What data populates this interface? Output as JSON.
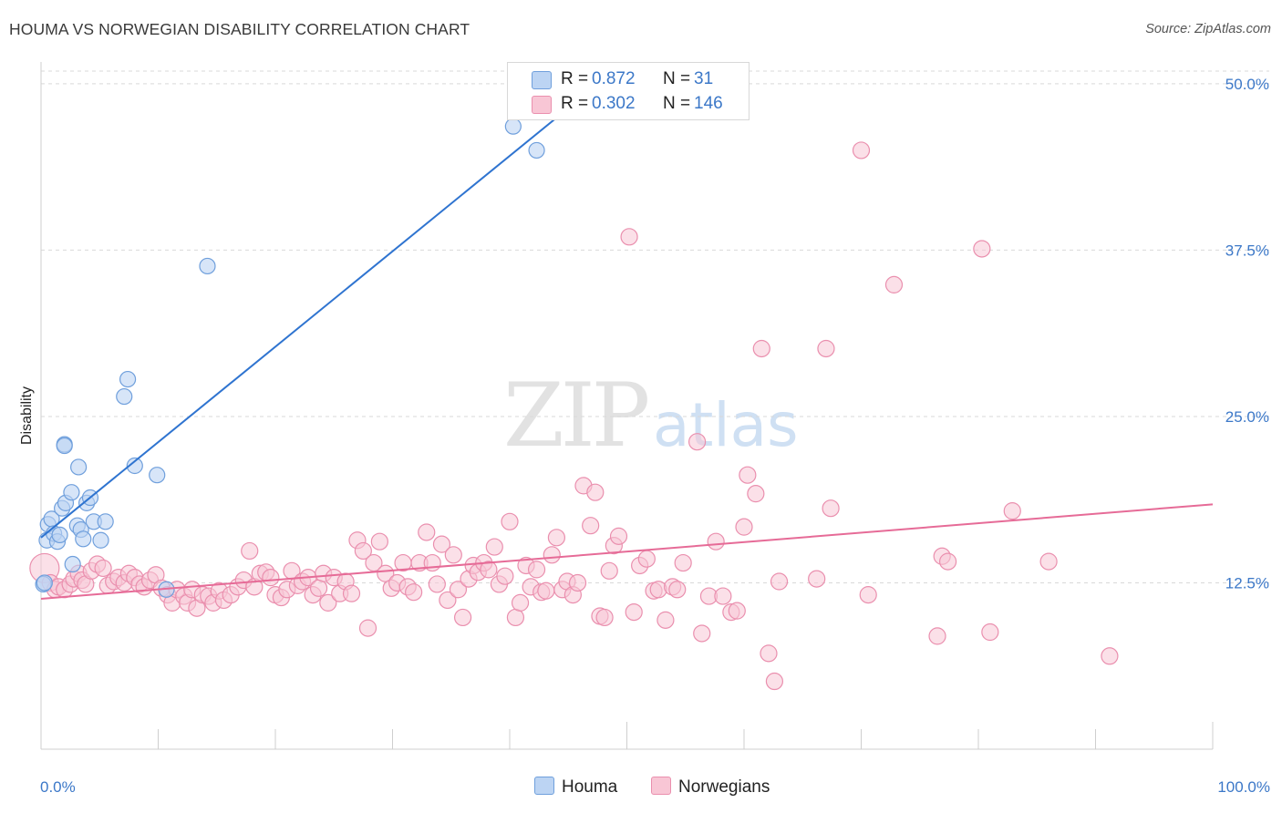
{
  "title": "HOUMA VS NORWEGIAN DISABILITY CORRELATION CHART",
  "source": "Source: ZipAtlas.com",
  "watermark": {
    "zip": "ZIP",
    "atlas": "atlas"
  },
  "legend": {
    "items": [
      {
        "r_label": "R =",
        "r_value": "0.872",
        "n_label": "N =",
        "n_value": "31",
        "color": "#a9c8f0"
      },
      {
        "r_label": "R =",
        "r_value": "0.302",
        "n_label": "N =",
        "n_value": "146",
        "color": "#f7b9cc"
      }
    ]
  },
  "bottom_legend": {
    "houma": "Houma",
    "norwegians": "Norwegians"
  },
  "colors": {
    "houma_fill": "#bcd4f3",
    "houma_stroke": "#6f9fdc",
    "houma_line": "#2f74d0",
    "norw_fill": "#f8c6d5",
    "norw_stroke": "#ea8fae",
    "norw_line": "#e66b97",
    "axis_text": "#3c78c8",
    "grid": "#d9d9d9"
  },
  "chart_data": {
    "type": "scatter",
    "xlabel": "",
    "ylabel": "Disability",
    "xlim": [
      0,
      100
    ],
    "ylim": [
      0,
      51.5
    ],
    "x_tick_labels": [
      "0.0%",
      "100.0%"
    ],
    "y_ticks": [
      12.5,
      25.0,
      37.5,
      50.0
    ],
    "y_tick_labels": [
      "12.5%",
      "25.0%",
      "37.5%",
      "50.0%"
    ],
    "grid": true,
    "legend_position": "top-center",
    "series": [
      {
        "name": "Houma",
        "trend": {
          "x": [
            0,
            47.0
          ],
          "y": [
            15.9,
            49.6
          ]
        },
        "points": [
          [
            0.2,
            12.4
          ],
          [
            0.5,
            15.7
          ],
          [
            0.6,
            16.9
          ],
          [
            0.9,
            17.3
          ],
          [
            1.1,
            16.2
          ],
          [
            1.4,
            15.6
          ],
          [
            1.8,
            18.1
          ],
          [
            2.0,
            22.9
          ],
          [
            2.1,
            18.5
          ],
          [
            2.6,
            19.3
          ],
          [
            2.7,
            13.9
          ],
          [
            3.1,
            16.8
          ],
          [
            3.2,
            21.2
          ],
          [
            3.4,
            16.5
          ],
          [
            3.6,
            15.8
          ],
          [
            3.9,
            18.5
          ],
          [
            4.2,
            18.9
          ],
          [
            4.5,
            17.1
          ],
          [
            5.1,
            15.7
          ],
          [
            5.5,
            17.1
          ],
          [
            7.1,
            26.5
          ],
          [
            7.4,
            27.8
          ],
          [
            8.0,
            21.3
          ],
          [
            9.9,
            20.6
          ],
          [
            10.7,
            12.0
          ],
          [
            14.2,
            36.3
          ],
          [
            40.3,
            46.8
          ],
          [
            42.3,
            45.0
          ],
          [
            2.0,
            22.8
          ],
          [
            0.3,
            12.5
          ],
          [
            1.6,
            16.1
          ]
        ]
      },
      {
        "name": "Norwegians",
        "trend": {
          "x": [
            0,
            100
          ],
          "y": [
            11.3,
            18.4
          ]
        },
        "points": [
          [
            0.3,
            13.6
          ],
          [
            0.8,
            12.5
          ],
          [
            1.2,
            12.0
          ],
          [
            1.5,
            12.2
          ],
          [
            2.0,
            12.0
          ],
          [
            2.5,
            12.4
          ],
          [
            2.8,
            12.8
          ],
          [
            3.2,
            13.2
          ],
          [
            3.5,
            12.7
          ],
          [
            3.8,
            12.4
          ],
          [
            4.3,
            13.4
          ],
          [
            4.8,
            13.9
          ],
          [
            5.3,
            13.6
          ],
          [
            5.7,
            12.3
          ],
          [
            6.2,
            12.6
          ],
          [
            6.6,
            12.9
          ],
          [
            7.1,
            12.5
          ],
          [
            7.5,
            13.2
          ],
          [
            8.0,
            12.9
          ],
          [
            8.4,
            12.4
          ],
          [
            8.8,
            12.2
          ],
          [
            9.3,
            12.7
          ],
          [
            9.8,
            13.1
          ],
          [
            10.3,
            12.1
          ],
          [
            10.8,
            11.6
          ],
          [
            11.2,
            11.0
          ],
          [
            11.6,
            12.0
          ],
          [
            12.2,
            11.5
          ],
          [
            12.5,
            11.0
          ],
          [
            12.9,
            12.0
          ],
          [
            13.3,
            10.6
          ],
          [
            13.8,
            11.6
          ],
          [
            14.3,
            11.5
          ],
          [
            14.7,
            11.0
          ],
          [
            15.2,
            11.9
          ],
          [
            15.6,
            11.2
          ],
          [
            16.2,
            11.6
          ],
          [
            16.8,
            12.2
          ],
          [
            17.3,
            12.7
          ],
          [
            17.8,
            14.9
          ],
          [
            18.2,
            12.2
          ],
          [
            18.7,
            13.2
          ],
          [
            19.2,
            13.3
          ],
          [
            19.6,
            12.9
          ],
          [
            20.0,
            11.6
          ],
          [
            20.5,
            11.4
          ],
          [
            21.0,
            12.0
          ],
          [
            21.4,
            13.4
          ],
          [
            21.9,
            12.3
          ],
          [
            22.3,
            12.6
          ],
          [
            22.8,
            12.9
          ],
          [
            23.2,
            11.6
          ],
          [
            23.7,
            12.1
          ],
          [
            24.1,
            13.2
          ],
          [
            24.5,
            11.0
          ],
          [
            25.0,
            12.9
          ],
          [
            25.5,
            11.7
          ],
          [
            26.0,
            12.6
          ],
          [
            26.5,
            11.7
          ],
          [
            27.0,
            15.7
          ],
          [
            27.5,
            14.9
          ],
          [
            27.9,
            9.1
          ],
          [
            28.4,
            14.0
          ],
          [
            28.9,
            15.6
          ],
          [
            29.4,
            13.2
          ],
          [
            29.9,
            12.1
          ],
          [
            30.4,
            12.5
          ],
          [
            30.9,
            14.0
          ],
          [
            31.3,
            12.2
          ],
          [
            31.8,
            11.8
          ],
          [
            32.3,
            14.0
          ],
          [
            32.9,
            16.3
          ],
          [
            33.4,
            14.0
          ],
          [
            33.8,
            12.4
          ],
          [
            34.2,
            15.4
          ],
          [
            34.7,
            11.2
          ],
          [
            35.2,
            14.6
          ],
          [
            35.6,
            12.0
          ],
          [
            36.0,
            9.9
          ],
          [
            36.5,
            12.8
          ],
          [
            36.9,
            13.8
          ],
          [
            37.3,
            13.3
          ],
          [
            37.8,
            14.0
          ],
          [
            38.2,
            13.5
          ],
          [
            38.7,
            15.2
          ],
          [
            39.1,
            12.4
          ],
          [
            39.6,
            13.0
          ],
          [
            40.0,
            17.1
          ],
          [
            40.5,
            9.9
          ],
          [
            40.9,
            11.0
          ],
          [
            41.4,
            13.8
          ],
          [
            41.8,
            12.2
          ],
          [
            42.3,
            13.5
          ],
          [
            42.7,
            11.8
          ],
          [
            43.1,
            11.9
          ],
          [
            43.6,
            14.6
          ],
          [
            44.0,
            15.9
          ],
          [
            44.5,
            12.0
          ],
          [
            44.9,
            12.6
          ],
          [
            45.4,
            11.6
          ],
          [
            45.8,
            12.5
          ],
          [
            46.3,
            19.8
          ],
          [
            46.9,
            16.8
          ],
          [
            47.3,
            19.3
          ],
          [
            47.7,
            10.0
          ],
          [
            48.1,
            9.9
          ],
          [
            48.5,
            13.4
          ],
          [
            48.9,
            15.3
          ],
          [
            49.3,
            16.0
          ],
          [
            50.2,
            38.5
          ],
          [
            50.6,
            10.3
          ],
          [
            51.1,
            13.8
          ],
          [
            51.7,
            14.3
          ],
          [
            52.3,
            11.9
          ],
          [
            52.7,
            12.0
          ],
          [
            53.3,
            9.7
          ],
          [
            53.9,
            12.2
          ],
          [
            54.3,
            12.0
          ],
          [
            54.8,
            14.0
          ],
          [
            56.0,
            23.1
          ],
          [
            56.4,
            8.7
          ],
          [
            57.0,
            11.5
          ],
          [
            57.6,
            15.6
          ],
          [
            58.2,
            11.5
          ],
          [
            58.9,
            10.3
          ],
          [
            59.4,
            10.4
          ],
          [
            60.0,
            16.7
          ],
          [
            60.3,
            20.6
          ],
          [
            61.0,
            19.2
          ],
          [
            61.5,
            30.1
          ],
          [
            62.1,
            7.2
          ],
          [
            62.6,
            5.1
          ],
          [
            63.0,
            12.6
          ],
          [
            66.2,
            12.8
          ],
          [
            67.0,
            30.1
          ],
          [
            67.4,
            18.1
          ],
          [
            70.0,
            45.0
          ],
          [
            70.6,
            11.6
          ],
          [
            72.8,
            34.9
          ],
          [
            76.5,
            8.5
          ],
          [
            76.9,
            14.5
          ],
          [
            77.4,
            14.1
          ],
          [
            80.3,
            37.6
          ],
          [
            81.0,
            8.8
          ],
          [
            82.9,
            17.9
          ],
          [
            86.0,
            14.1
          ],
          [
            91.2,
            7.0
          ]
        ]
      }
    ]
  }
}
